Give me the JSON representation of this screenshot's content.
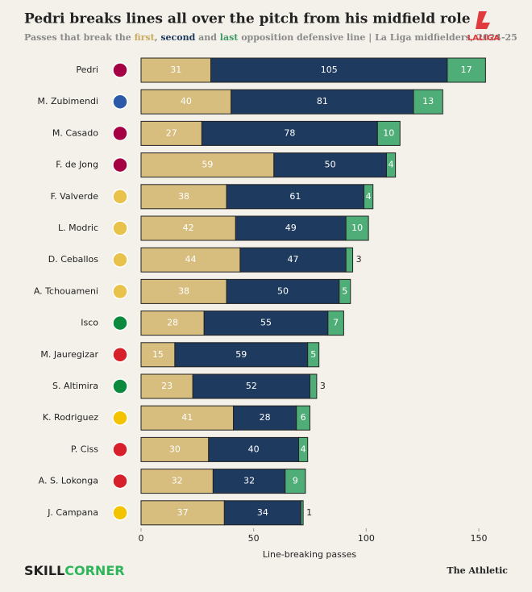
{
  "title": "Pedri breaks lines all over the pitch from his midfield role",
  "subtitle": [
    "Passes that break the ",
    ", ",
    " and ",
    " opposition defensive line | La Liga midfielders, 2024-25"
  ],
  "logo": "LALIGA",
  "footer": {
    "brand": [
      "SKILL",
      "CORNER"
    ],
    "publisher": "The Athletic"
  },
  "chart_data": {
    "type": "stacked_bar_horizontal",
    "categories": [
      "Pedri",
      "M. Zubimendi",
      "M. Casado",
      "F. de Jong",
      "F. Valverde",
      "L. Modric",
      "D. Ceballos",
      "A. Tchouameni",
      "Isco",
      "M. Jauregizar",
      "S. Altimira",
      "K. Rodriguez",
      "P. Ciss",
      "A. S. Lokonga",
      "J. Campana"
    ],
    "series": [
      {
        "name": "first",
        "color": "#d7bd7e",
        "values": [
          31,
          40,
          27,
          59,
          38,
          42,
          44,
          38,
          28,
          15,
          23,
          41,
          30,
          32,
          37
        ]
      },
      {
        "name": "second",
        "color": "#1e3a5f",
        "values": [
          105,
          81,
          78,
          50,
          61,
          49,
          47,
          50,
          55,
          59,
          52,
          28,
          40,
          32,
          34
        ]
      },
      {
        "name": "last",
        "color": "#4fae78",
        "values": [
          17,
          13,
          10,
          4,
          4,
          10,
          3,
          5,
          7,
          5,
          3,
          6,
          4,
          9,
          1
        ]
      }
    ],
    "xlabel": "Line-breaking passes",
    "xlim": [
      0,
      150
    ],
    "xticks": [
      0,
      50,
      100,
      150
    ]
  }
}
